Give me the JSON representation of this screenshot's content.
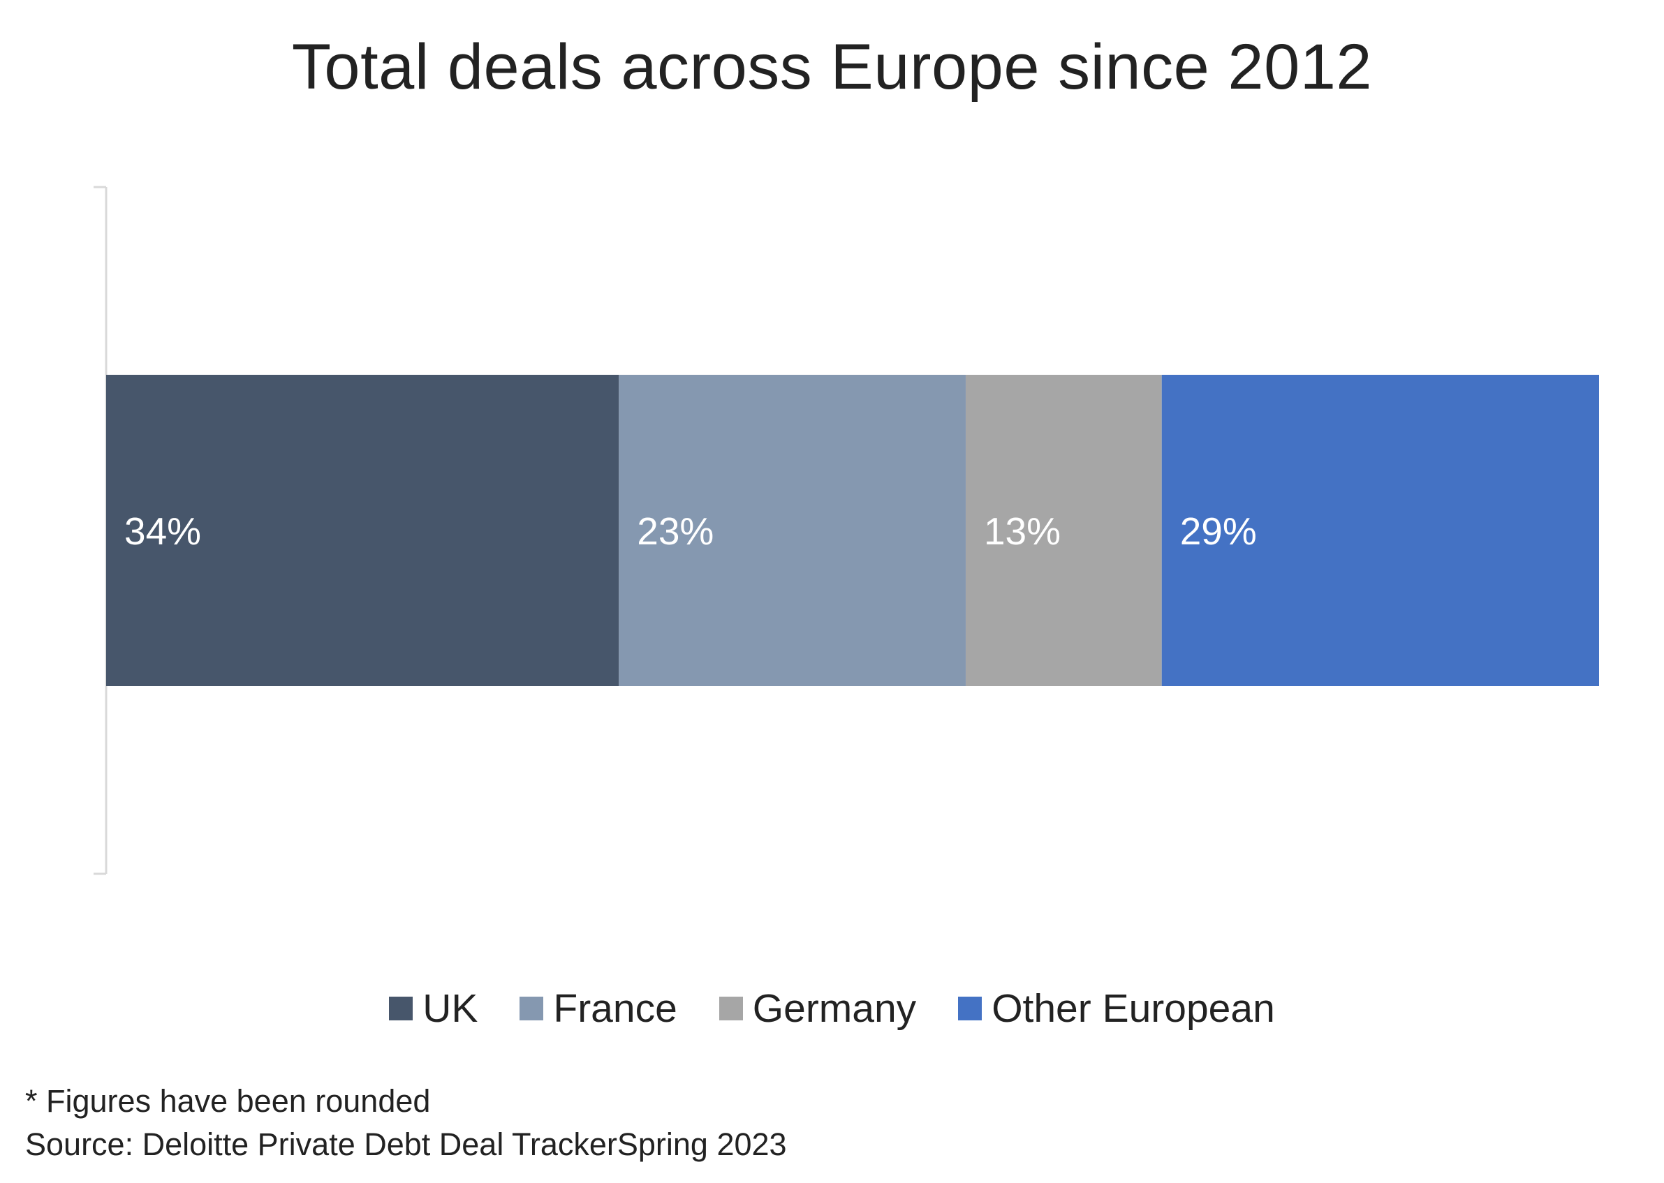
{
  "chart_data": {
    "type": "bar",
    "orientation": "horizontal",
    "stacked": true,
    "title": "Total deals across Europe since 2012",
    "xlabel": "",
    "ylabel": "",
    "categories": [
      ""
    ],
    "series": [
      {
        "name": "UK",
        "values": [
          34
        ],
        "label": "34%",
        "color": "#47566B"
      },
      {
        "name": "France",
        "values": [
          23
        ],
        "label": "23%",
        "color": "#8598B0"
      },
      {
        "name": "Germany",
        "values": [
          13
        ],
        "label": "13%",
        "color": "#A6A6A6"
      },
      {
        "name": "Other European",
        "values": [
          29
        ],
        "label": "29%",
        "color": "#4472C4"
      }
    ],
    "grid": false,
    "legend_position": "bottom"
  },
  "notes": {
    "rounded": "* Figures have been rounded",
    "source": "Source: Deloitte Private Debt Deal TrackerSpring 2023"
  },
  "colors": {
    "axis": "#D9D9D9",
    "bar_label": "#FFFFFF"
  }
}
